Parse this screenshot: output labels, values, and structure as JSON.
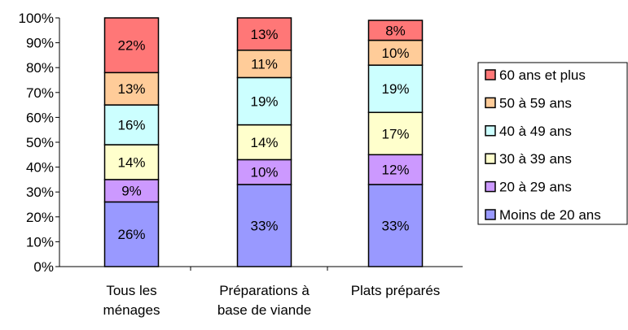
{
  "chart_data": {
    "type": "bar",
    "stacked": true,
    "title": "",
    "xlabel": "",
    "ylabel": "",
    "ylim": [
      0,
      100
    ],
    "y_ticks": [
      "0%",
      "10%",
      "20%",
      "30%",
      "40%",
      "50%",
      "60%",
      "70%",
      "80%",
      "90%",
      "100%"
    ],
    "grid": false,
    "legend_position": "right",
    "categories": [
      [
        "Tous les",
        "ménages"
      ],
      [
        "Préparations à",
        "base de viande"
      ],
      [
        "Plats préparés"
      ]
    ],
    "series": [
      {
        "name": "Moins de 20 ans",
        "color": "#9999ff",
        "values": [
          26,
          33,
          33
        ],
        "labels": [
          "26%",
          "33%",
          "33%"
        ]
      },
      {
        "name": "20 à 29 ans",
        "color": "#cc99ff",
        "values": [
          9,
          10,
          12
        ],
        "labels": [
          "9%",
          "10%",
          "12%"
        ]
      },
      {
        "name": "30 à 39 ans",
        "color": "#ffffcc",
        "values": [
          14,
          14,
          17
        ],
        "labels": [
          "14%",
          "14%",
          "17%"
        ]
      },
      {
        "name": "40 à 49 ans",
        "color": "#ccffff",
        "values": [
          16,
          19,
          19
        ],
        "labels": [
          "16%",
          "19%",
          "19%"
        ]
      },
      {
        "name": "50 à 59 ans",
        "color": "#ffcc99",
        "values": [
          13,
          11,
          10
        ],
        "labels": [
          "13%",
          "11%",
          "10%"
        ]
      },
      {
        "name": "60 ans et plus",
        "color": "#ff7777",
        "values": [
          22,
          13,
          8
        ],
        "labels": [
          "22%",
          "13%",
          "8%"
        ]
      }
    ],
    "legend_order": [
      "60 ans et plus",
      "50 à 59 ans",
      "40 à 49 ans",
      "30 à 39 ans",
      "20 à 29 ans",
      "Moins de 20 ans"
    ]
  }
}
